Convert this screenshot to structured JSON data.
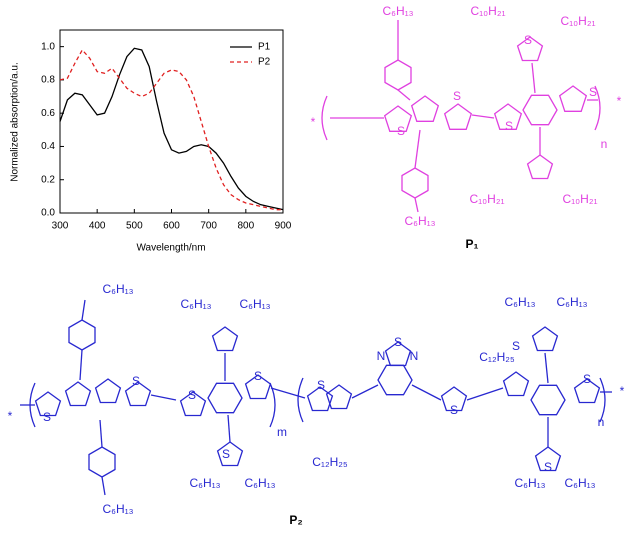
{
  "chart_data": {
    "type": "line",
    "x_label": "Wavelength/nm",
    "y_label": "Normalized absorption/a.u.",
    "x": [
      300,
      320,
      340,
      360,
      380,
      400,
      420,
      440,
      460,
      480,
      500,
      520,
      540,
      560,
      580,
      600,
      620,
      640,
      660,
      680,
      700,
      720,
      740,
      760,
      780,
      800,
      820,
      840,
      860,
      880,
      900
    ],
    "series": [
      {
        "name": "P1",
        "color": "#000000",
        "dash": false,
        "values": [
          0.55,
          0.68,
          0.72,
          0.71,
          0.65,
          0.59,
          0.6,
          0.7,
          0.83,
          0.94,
          0.99,
          0.98,
          0.88,
          0.67,
          0.48,
          0.38,
          0.36,
          0.37,
          0.4,
          0.41,
          0.4,
          0.36,
          0.3,
          0.22,
          0.15,
          0.1,
          0.07,
          0.05,
          0.04,
          0.03,
          0.02
        ]
      },
      {
        "name": "P2",
        "color": "#e02020",
        "dash": true,
        "values": [
          0.8,
          0.81,
          0.9,
          0.98,
          0.93,
          0.85,
          0.84,
          0.87,
          0.81,
          0.75,
          0.72,
          0.7,
          0.72,
          0.78,
          0.84,
          0.86,
          0.85,
          0.8,
          0.7,
          0.55,
          0.4,
          0.27,
          0.17,
          0.11,
          0.08,
          0.06,
          0.05,
          0.04,
          0.03,
          0.02,
          0.02
        ]
      }
    ],
    "xlim": [
      300,
      900
    ],
    "xticks": [
      300,
      400,
      500,
      600,
      700,
      800,
      900
    ],
    "ylim": [
      0,
      1.1
    ],
    "yticks": [
      {
        "value": 0,
        "label": "0.0"
      },
      0.2,
      0.4,
      0.6,
      0.8,
      {
        "value": 1,
        "label": "1.0"
      }
    ],
    "legend": "upper right"
  },
  "structures": {
    "p1": {
      "label": "P₁",
      "color": "#e040e0",
      "texts": [
        "C₆H₁₃",
        "C₁₀H₂₁",
        "C₁₀H₂₁",
        "S",
        "S",
        "S",
        "S",
        "S",
        "C₁₀H₂₁",
        "C₁₀H₂₁",
        "C₆H₁₃",
        "*",
        "*",
        "n"
      ]
    },
    "p2": {
      "label": "P₂",
      "color": "#2828d0",
      "texts": [
        "C₆H₁₃",
        "C₆H₁₃",
        "C₆H₁₃",
        "C₆H₁₃",
        "C₆H₁₃",
        "C₁₂H₂₅",
        "C₁₂H₂₅",
        "N",
        "S",
        "N",
        "C₆H₁₃",
        "C₆H₁₃",
        "C₆H₁₃",
        "C₆H₁₃",
        "C₆H₁₃",
        "S",
        "S",
        "S",
        "S",
        "S",
        "S",
        "S",
        "S",
        "S",
        "S",
        "m",
        "n",
        "*",
        "*"
      ]
    }
  }
}
